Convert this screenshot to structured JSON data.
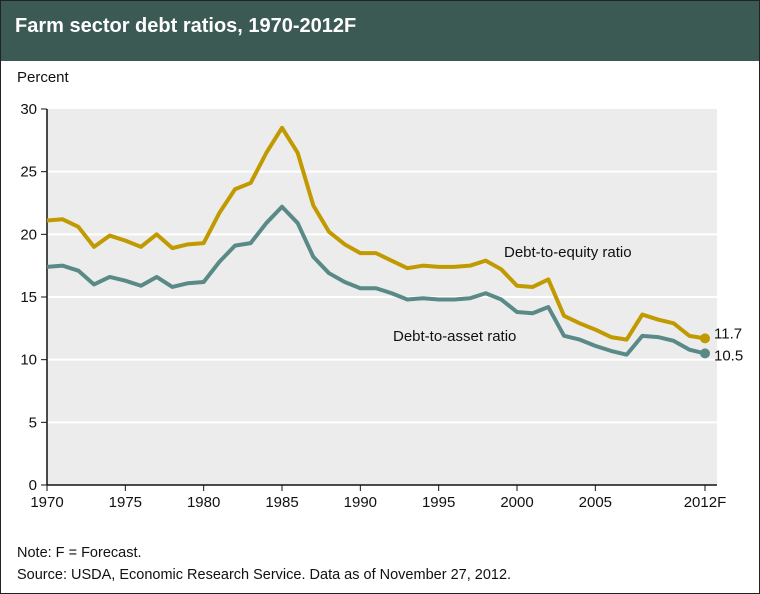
{
  "chart_data": {
    "type": "line",
    "title": "Farm sector debt ratios, 1970-2012F",
    "ylabel": "Percent",
    "xlabel": "",
    "ylim": [
      0,
      30
    ],
    "xlim": [
      1970,
      2012
    ],
    "yticks": [
      0,
      5,
      10,
      15,
      20,
      25,
      30
    ],
    "xticks": [
      {
        "v": 1970,
        "label": "1970"
      },
      {
        "v": 1975,
        "label": "1975"
      },
      {
        "v": 1980,
        "label": "1980"
      },
      {
        "v": 1985,
        "label": "1985"
      },
      {
        "v": 1990,
        "label": "1990"
      },
      {
        "v": 1995,
        "label": "1995"
      },
      {
        "v": 2000,
        "label": "2000"
      },
      {
        "v": 2005,
        "label": "2005"
      },
      {
        "v": 2012,
        "label": "2012F"
      }
    ],
    "grid": true,
    "x": [
      1970,
      1971,
      1972,
      1973,
      1974,
      1975,
      1976,
      1977,
      1978,
      1979,
      1980,
      1981,
      1982,
      1983,
      1984,
      1985,
      1986,
      1987,
      1988,
      1989,
      1990,
      1991,
      1992,
      1993,
      1994,
      1995,
      1996,
      1997,
      1998,
      1999,
      2000,
      2001,
      2002,
      2003,
      2004,
      2005,
      2006,
      2007,
      2008,
      2009,
      2010,
      2011,
      2012
    ],
    "series": [
      {
        "name": "Debt-to-equity ratio",
        "color": "#c09a00",
        "end_label": "11.7",
        "values": [
          21.1,
          21.2,
          20.6,
          19.0,
          19.9,
          19.5,
          19.0,
          20.0,
          18.9,
          19.2,
          19.3,
          21.7,
          23.6,
          24.1,
          26.5,
          28.5,
          26.5,
          22.3,
          20.2,
          19.2,
          18.5,
          18.5,
          17.9,
          17.3,
          17.5,
          17.4,
          17.4,
          17.5,
          17.9,
          17.2,
          15.9,
          15.8,
          16.4,
          13.5,
          12.9,
          12.4,
          11.8,
          11.6,
          13.6,
          13.2,
          12.9,
          11.9,
          11.7
        ]
      },
      {
        "name": "Debt-to-asset ratio",
        "color": "#5a8a87",
        "end_label": "10.5",
        "values": [
          17.4,
          17.5,
          17.1,
          16.0,
          16.6,
          16.3,
          15.9,
          16.6,
          15.8,
          16.1,
          16.2,
          17.8,
          19.1,
          19.3,
          20.9,
          22.2,
          20.9,
          18.2,
          16.9,
          16.2,
          15.7,
          15.7,
          15.3,
          14.8,
          14.9,
          14.8,
          14.8,
          14.9,
          15.3,
          14.8,
          13.8,
          13.7,
          14.2,
          11.9,
          11.6,
          11.1,
          10.7,
          10.4,
          11.9,
          11.8,
          11.5,
          10.8,
          10.5
        ]
      }
    ],
    "notes": [
      "Note: F = Forecast.",
      "Source: USDA, Economic Research Service. Data as of November 27, 2012."
    ]
  }
}
